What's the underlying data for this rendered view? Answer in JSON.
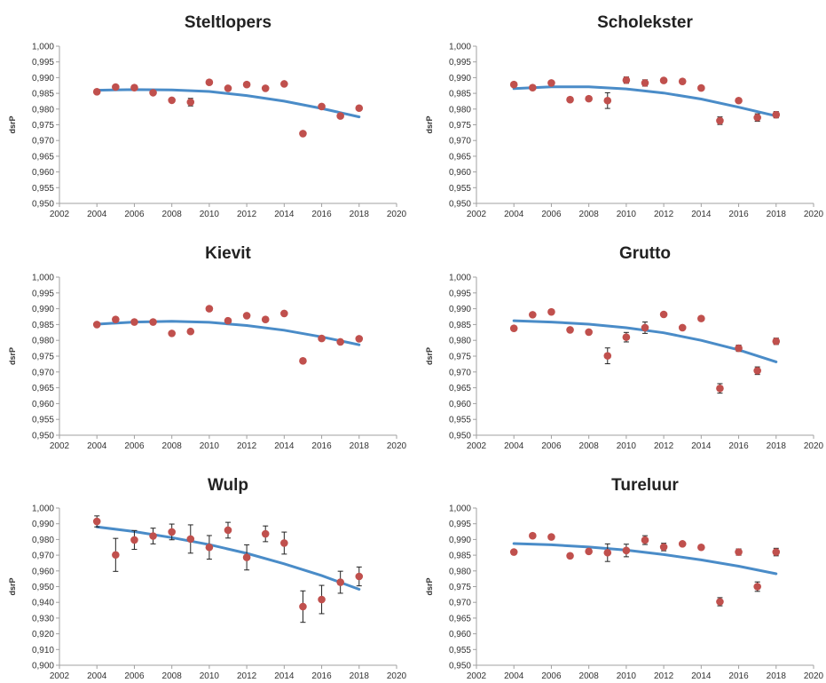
{
  "colors": {
    "points": "#c0504d",
    "trend": "#4a8cc8"
  },
  "chart_data": [
    {
      "type": "scatter",
      "title": "Steltlopers",
      "ylabel": "dsrP",
      "xlim": [
        2002,
        2020
      ],
      "ylim": [
        0.95,
        1.0
      ],
      "xticks": [
        2002,
        2004,
        2006,
        2008,
        2010,
        2012,
        2014,
        2016,
        2018,
        2020
      ],
      "xtick_labels": [
        "2002",
        "2004",
        "2006",
        "2008",
        "2010",
        "2012",
        "2014",
        "2016",
        "2018",
        "2020"
      ],
      "yticks": [
        0.95,
        0.955,
        0.96,
        0.965,
        0.97,
        0.975,
        0.98,
        0.985,
        0.99,
        0.995,
        1.0
      ],
      "ytick_labels": [
        "0,950",
        "0,955",
        "0,960",
        "0,965",
        "0,970",
        "0,975",
        "0,980",
        "0,985",
        "0,990",
        "0,995",
        "1,000"
      ],
      "points": [
        {
          "x": 2004,
          "y": 0.9855,
          "err": 0.0005
        },
        {
          "x": 2005,
          "y": 0.987,
          "err": 0.0005
        },
        {
          "x": 2006,
          "y": 0.9868,
          "err": 0.0005
        },
        {
          "x": 2007,
          "y": 0.9852,
          "err": 0.0005
        },
        {
          "x": 2008,
          "y": 0.9828,
          "err": 0.0005
        },
        {
          "x": 2009,
          "y": 0.9822,
          "err": 0.0012
        },
        {
          "x": 2010,
          "y": 0.9885,
          "err": 0.0005
        },
        {
          "x": 2011,
          "y": 0.9866,
          "err": 0.0008
        },
        {
          "x": 2012,
          "y": 0.9878,
          "err": 0.0005
        },
        {
          "x": 2013,
          "y": 0.9866,
          "err": 0.0005
        },
        {
          "x": 2014,
          "y": 0.988,
          "err": 0.0005
        },
        {
          "x": 2015,
          "y": 0.9722,
          "err": 0.0008
        },
        {
          "x": 2016,
          "y": 0.9808,
          "err": 0.0005
        },
        {
          "x": 2017,
          "y": 0.9778,
          "err": 0.0008
        },
        {
          "x": 2018,
          "y": 0.9803,
          "err": 0.0005
        }
      ],
      "trend": [
        {
          "x": 2004,
          "y": 0.986
        },
        {
          "x": 2006,
          "y": 0.9862
        },
        {
          "x": 2008,
          "y": 0.9861
        },
        {
          "x": 2010,
          "y": 0.9856
        },
        {
          "x": 2012,
          "y": 0.9843
        },
        {
          "x": 2014,
          "y": 0.9825
        },
        {
          "x": 2016,
          "y": 0.9802
        },
        {
          "x": 2018,
          "y": 0.9775
        }
      ]
    },
    {
      "type": "scatter",
      "title": "Scholekster",
      "ylabel": "dsrP",
      "xlim": [
        2002,
        2020
      ],
      "ylim": [
        0.95,
        1.0
      ],
      "xticks": [
        2002,
        2004,
        2006,
        2008,
        2010,
        2012,
        2014,
        2016,
        2018,
        2020
      ],
      "xtick_labels": [
        "2002",
        "2004",
        "2006",
        "2008",
        "2010",
        "2012",
        "2014",
        "2016",
        "2018",
        "2020"
      ],
      "yticks": [
        0.95,
        0.955,
        0.96,
        0.965,
        0.97,
        0.975,
        0.98,
        0.985,
        0.99,
        0.995,
        1.0
      ],
      "ytick_labels": [
        "0,950",
        "0,955",
        "0,960",
        "0,965",
        "0,970",
        "0,975",
        "0,980",
        "0,985",
        "0,990",
        "0,995",
        "1,000"
      ],
      "points": [
        {
          "x": 2004,
          "y": 0.9878,
          "err": 0.0005
        },
        {
          "x": 2005,
          "y": 0.9868,
          "err": 0.0005
        },
        {
          "x": 2006,
          "y": 0.9883,
          "err": 0.0005
        },
        {
          "x": 2007,
          "y": 0.983,
          "err": 0.0008
        },
        {
          "x": 2008,
          "y": 0.9833,
          "err": 0.0005
        },
        {
          "x": 2009,
          "y": 0.9827,
          "err": 0.0025
        },
        {
          "x": 2010,
          "y": 0.9892,
          "err": 0.001
        },
        {
          "x": 2011,
          "y": 0.9883,
          "err": 0.001
        },
        {
          "x": 2012,
          "y": 0.9891,
          "err": 0.0005
        },
        {
          "x": 2013,
          "y": 0.9888,
          "err": 0.0005
        },
        {
          "x": 2014,
          "y": 0.9867,
          "err": 0.0005
        },
        {
          "x": 2015,
          "y": 0.9763,
          "err": 0.0012
        },
        {
          "x": 2016,
          "y": 0.9827,
          "err": 0.0008
        },
        {
          "x": 2017,
          "y": 0.9773,
          "err": 0.0012
        },
        {
          "x": 2018,
          "y": 0.9782,
          "err": 0.001
        }
      ],
      "trend": [
        {
          "x": 2004,
          "y": 0.9865
        },
        {
          "x": 2006,
          "y": 0.9871
        },
        {
          "x": 2008,
          "y": 0.9871
        },
        {
          "x": 2010,
          "y": 0.9864
        },
        {
          "x": 2012,
          "y": 0.9851
        },
        {
          "x": 2014,
          "y": 0.9832
        },
        {
          "x": 2016,
          "y": 0.9806
        },
        {
          "x": 2018,
          "y": 0.9778
        }
      ]
    },
    {
      "type": "scatter",
      "title": "Kievit",
      "ylabel": "dsrP",
      "xlim": [
        2002,
        2020
      ],
      "ylim": [
        0.95,
        1.0
      ],
      "xticks": [
        2002,
        2004,
        2006,
        2008,
        2010,
        2012,
        2014,
        2016,
        2018,
        2020
      ],
      "xtick_labels": [
        "2002",
        "2004",
        "2006",
        "2008",
        "2010",
        "2012",
        "2014",
        "2016",
        "2018",
        "2020"
      ],
      "yticks": [
        0.95,
        0.955,
        0.96,
        0.965,
        0.97,
        0.975,
        0.98,
        0.985,
        0.99,
        0.995,
        1.0
      ],
      "ytick_labels": [
        "0,950",
        "0,955",
        "0,960",
        "0,965",
        "0,970",
        "0,975",
        "0,980",
        "0,985",
        "0,990",
        "0,995",
        "1,000"
      ],
      "points": [
        {
          "x": 2004,
          "y": 0.985,
          "err": 0.0004
        },
        {
          "x": 2005,
          "y": 0.9866,
          "err": 0.0004
        },
        {
          "x": 2006,
          "y": 0.9858,
          "err": 0.0004
        },
        {
          "x": 2007,
          "y": 0.9858,
          "err": 0.0004
        },
        {
          "x": 2008,
          "y": 0.9822,
          "err": 0.0004
        },
        {
          "x": 2009,
          "y": 0.9828,
          "err": 0.0004
        },
        {
          "x": 2010,
          "y": 0.99,
          "err": 0.0004
        },
        {
          "x": 2011,
          "y": 0.9862,
          "err": 0.0004
        },
        {
          "x": 2012,
          "y": 0.9878,
          "err": 0.0004
        },
        {
          "x": 2013,
          "y": 0.9866,
          "err": 0.0004
        },
        {
          "x": 2014,
          "y": 0.9885,
          "err": 0.0004
        },
        {
          "x": 2015,
          "y": 0.9735,
          "err": 0.0004
        },
        {
          "x": 2016,
          "y": 0.9806,
          "err": 0.0004
        },
        {
          "x": 2017,
          "y": 0.9795,
          "err": 0.0004
        },
        {
          "x": 2018,
          "y": 0.9805,
          "err": 0.0004
        }
      ],
      "trend": [
        {
          "x": 2004,
          "y": 0.9851
        },
        {
          "x": 2006,
          "y": 0.9858
        },
        {
          "x": 2008,
          "y": 0.986
        },
        {
          "x": 2010,
          "y": 0.9857
        },
        {
          "x": 2012,
          "y": 0.9847
        },
        {
          "x": 2014,
          "y": 0.9832
        },
        {
          "x": 2016,
          "y": 0.9811
        },
        {
          "x": 2018,
          "y": 0.9786
        }
      ]
    },
    {
      "type": "scatter",
      "title": "Grutto",
      "ylabel": "dsrP",
      "xlim": [
        2002,
        2020
      ],
      "ylim": [
        0.95,
        1.0
      ],
      "xticks": [
        2002,
        2004,
        2006,
        2008,
        2010,
        2012,
        2014,
        2016,
        2018,
        2020
      ],
      "xtick_labels": [
        "2002",
        "2004",
        "2006",
        "2008",
        "2010",
        "2012",
        "2014",
        "2016",
        "2018",
        "2020"
      ],
      "yticks": [
        0.95,
        0.955,
        0.96,
        0.965,
        0.97,
        0.975,
        0.98,
        0.985,
        0.99,
        0.995,
        1.0
      ],
      "ytick_labels": [
        "0,950",
        "0,955",
        "0,960",
        "0,965",
        "0,970",
        "0,975",
        "0,980",
        "0,985",
        "0,990",
        "0,995",
        "1,000"
      ],
      "points": [
        {
          "x": 2004,
          "y": 0.9838,
          "err": 0.0004
        },
        {
          "x": 2005,
          "y": 0.9881,
          "err": 0.0004
        },
        {
          "x": 2006,
          "y": 0.989,
          "err": 0.0004
        },
        {
          "x": 2007,
          "y": 0.9833,
          "err": 0.0004
        },
        {
          "x": 2008,
          "y": 0.9826,
          "err": 0.0004
        },
        {
          "x": 2009,
          "y": 0.9751,
          "err": 0.0025
        },
        {
          "x": 2010,
          "y": 0.981,
          "err": 0.0015
        },
        {
          "x": 2011,
          "y": 0.984,
          "err": 0.0018
        },
        {
          "x": 2012,
          "y": 0.9882,
          "err": 0.0008
        },
        {
          "x": 2013,
          "y": 0.984,
          "err": 0.0004
        },
        {
          "x": 2014,
          "y": 0.9869,
          "err": 0.0006
        },
        {
          "x": 2015,
          "y": 0.9648,
          "err": 0.0015
        },
        {
          "x": 2016,
          "y": 0.9775,
          "err": 0.001
        },
        {
          "x": 2017,
          "y": 0.9704,
          "err": 0.0012
        },
        {
          "x": 2018,
          "y": 0.9797,
          "err": 0.001
        }
      ],
      "trend": [
        {
          "x": 2004,
          "y": 0.9862
        },
        {
          "x": 2006,
          "y": 0.9858
        },
        {
          "x": 2008,
          "y": 0.9851
        },
        {
          "x": 2010,
          "y": 0.984
        },
        {
          "x": 2012,
          "y": 0.9824
        },
        {
          "x": 2014,
          "y": 0.98
        },
        {
          "x": 2016,
          "y": 0.977
        },
        {
          "x": 2018,
          "y": 0.9732
        }
      ]
    },
    {
      "type": "scatter",
      "title": "Wulp",
      "ylabel": "dsrP",
      "xlim": [
        2002,
        2020
      ],
      "ylim": [
        0.9,
        1.0
      ],
      "xticks": [
        2002,
        2004,
        2006,
        2008,
        2010,
        2012,
        2014,
        2016,
        2018,
        2020
      ],
      "xtick_labels": [
        "2002",
        "2004",
        "2006",
        "2008",
        "2010",
        "2012",
        "2014",
        "2016",
        "2018",
        "2020"
      ],
      "yticks": [
        0.9,
        0.91,
        0.92,
        0.93,
        0.94,
        0.95,
        0.96,
        0.97,
        0.98,
        0.99,
        1.0
      ],
      "ytick_labels": [
        "0,900",
        "0,910",
        "0,920",
        "0,930",
        "0,940",
        "0,950",
        "0,960",
        "0,970",
        "0,980",
        "0,990",
        "1,000"
      ],
      "points": [
        {
          "x": 2004,
          "y": 0.9915,
          "err": 0.0035
        },
        {
          "x": 2005,
          "y": 0.9702,
          "err": 0.0105
        },
        {
          "x": 2006,
          "y": 0.9797,
          "err": 0.006
        },
        {
          "x": 2007,
          "y": 0.9822,
          "err": 0.005
        },
        {
          "x": 2008,
          "y": 0.9848,
          "err": 0.005
        },
        {
          "x": 2009,
          "y": 0.9803,
          "err": 0.009
        },
        {
          "x": 2010,
          "y": 0.975,
          "err": 0.0075
        },
        {
          "x": 2011,
          "y": 0.9859,
          "err": 0.005
        },
        {
          "x": 2012,
          "y": 0.9686,
          "err": 0.008
        },
        {
          "x": 2013,
          "y": 0.9836,
          "err": 0.005
        },
        {
          "x": 2014,
          "y": 0.9777,
          "err": 0.007
        },
        {
          "x": 2015,
          "y": 0.9373,
          "err": 0.01
        },
        {
          "x": 2016,
          "y": 0.9418,
          "err": 0.009
        },
        {
          "x": 2017,
          "y": 0.9528,
          "err": 0.007
        },
        {
          "x": 2018,
          "y": 0.9565,
          "err": 0.006
        }
      ],
      "trend": [
        {
          "x": 2004,
          "y": 0.988
        },
        {
          "x": 2006,
          "y": 0.985
        },
        {
          "x": 2008,
          "y": 0.9812
        },
        {
          "x": 2010,
          "y": 0.9767
        },
        {
          "x": 2012,
          "y": 0.9712
        },
        {
          "x": 2014,
          "y": 0.9645
        },
        {
          "x": 2016,
          "y": 0.957
        },
        {
          "x": 2018,
          "y": 0.9483
        }
      ]
    },
    {
      "type": "scatter",
      "title": "Tureluur",
      "ylabel": "dsrP",
      "xlim": [
        2002,
        2020
      ],
      "ylim": [
        0.95,
        1.0
      ],
      "xticks": [
        2002,
        2004,
        2006,
        2008,
        2010,
        2012,
        2014,
        2016,
        2018,
        2020
      ],
      "xtick_labels": [
        "2002",
        "2004",
        "2006",
        "2008",
        "2010",
        "2012",
        "2014",
        "2016",
        "2018",
        "2020"
      ],
      "yticks": [
        0.95,
        0.955,
        0.96,
        0.965,
        0.97,
        0.975,
        0.98,
        0.985,
        0.99,
        0.995,
        1.0
      ],
      "ytick_labels": [
        "0,950",
        "0,955",
        "0,960",
        "0,965",
        "0,970",
        "0,975",
        "0,980",
        "0,985",
        "0,990",
        "0,995",
        "1,000"
      ],
      "points": [
        {
          "x": 2004,
          "y": 0.986,
          "err": 0.0004
        },
        {
          "x": 2005,
          "y": 0.9912,
          "err": 0.0004
        },
        {
          "x": 2006,
          "y": 0.9908,
          "err": 0.0004
        },
        {
          "x": 2007,
          "y": 0.9848,
          "err": 0.0008
        },
        {
          "x": 2008,
          "y": 0.9862,
          "err": 0.0005
        },
        {
          "x": 2009,
          "y": 0.9858,
          "err": 0.0028
        },
        {
          "x": 2010,
          "y": 0.9865,
          "err": 0.002
        },
        {
          "x": 2011,
          "y": 0.9898,
          "err": 0.0014
        },
        {
          "x": 2012,
          "y": 0.9876,
          "err": 0.0012
        },
        {
          "x": 2013,
          "y": 0.9886,
          "err": 0.0008
        },
        {
          "x": 2014,
          "y": 0.9875,
          "err": 0.0008
        },
        {
          "x": 2015,
          "y": 0.9702,
          "err": 0.0013
        },
        {
          "x": 2016,
          "y": 0.986,
          "err": 0.001
        },
        {
          "x": 2017,
          "y": 0.975,
          "err": 0.0015
        },
        {
          "x": 2018,
          "y": 0.986,
          "err": 0.0012
        }
      ],
      "trend": [
        {
          "x": 2004,
          "y": 0.9887
        },
        {
          "x": 2006,
          "y": 0.9883
        },
        {
          "x": 2008,
          "y": 0.9876
        },
        {
          "x": 2010,
          "y": 0.9866
        },
        {
          "x": 2012,
          "y": 0.9852
        },
        {
          "x": 2014,
          "y": 0.9835
        },
        {
          "x": 2016,
          "y": 0.9815
        },
        {
          "x": 2018,
          "y": 0.9791
        }
      ]
    }
  ]
}
